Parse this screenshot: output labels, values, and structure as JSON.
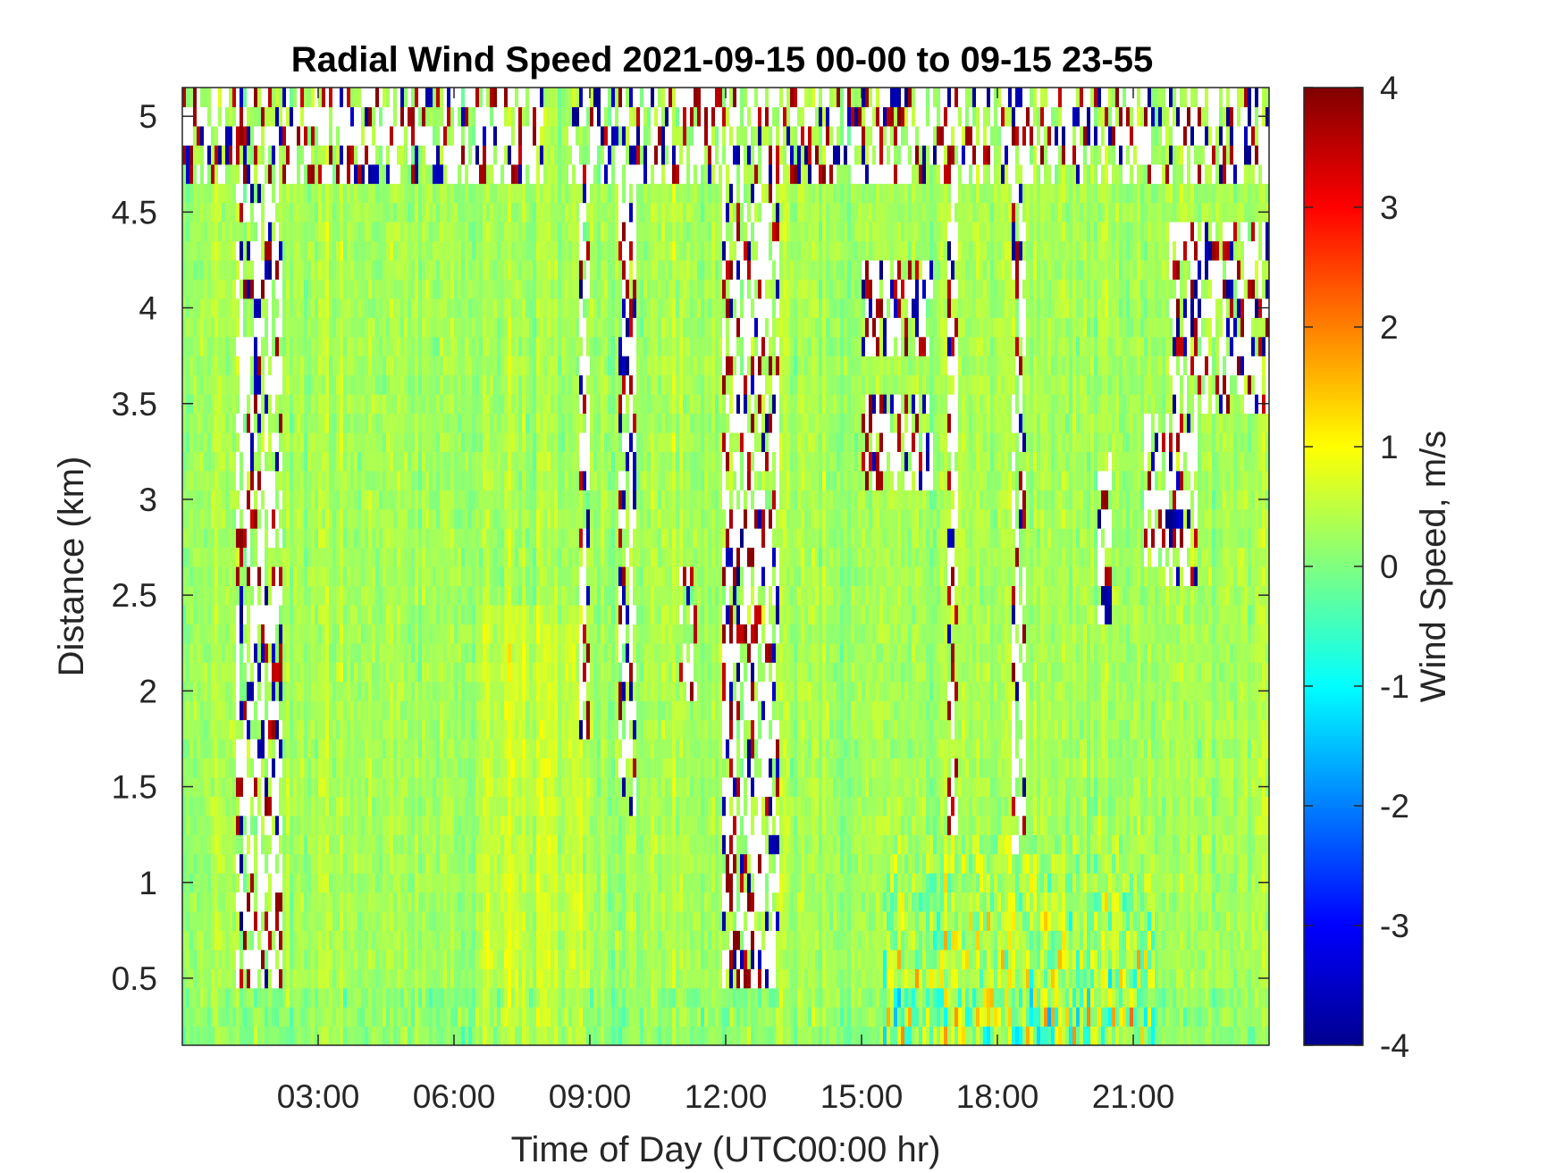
{
  "chart_data": {
    "type": "heatmap",
    "title": "Radial Wind Speed 2021-09-15 00-00 to 09-15 23-55",
    "xlabel": "Time of Day (UTC00:00 hr)",
    "ylabel": "Distance (km)",
    "colorbar_label": "Wind Speed, m/s",
    "colormap": "jet",
    "xlim_hours": [
      0,
      24
    ],
    "ylim_km": [
      0.15,
      5.15
    ],
    "clim": [
      -4,
      4
    ],
    "x_ticks": [
      3,
      6,
      9,
      12,
      15,
      18,
      21
    ],
    "x_tick_labels": [
      "03:00",
      "06:00",
      "09:00",
      "12:00",
      "15:00",
      "18:00",
      "21:00"
    ],
    "y_ticks": [
      0.5,
      1,
      1.5,
      2,
      2.5,
      3,
      3.5,
      4,
      4.5,
      5
    ],
    "y_tick_labels": [
      "0.5",
      "1",
      "1.5",
      "2",
      "2.5",
      "3",
      "3.5",
      "4",
      "4.5",
      "5"
    ],
    "colorbar_ticks": [
      -4,
      -3,
      -2,
      -1,
      0,
      1,
      2,
      3,
      4
    ],
    "colorbar_tick_labels": [
      "-4",
      "-3",
      "-2",
      "-1",
      "0",
      "1",
      "2",
      "3",
      "4"
    ],
    "grid": false,
    "typical_values": {
      "background_mean_m_s": 0.3,
      "daytime_low_level_fluctuations_m_s": [
        -2.5,
        3.0
      ]
    },
    "noisy_bands": [
      {
        "start_hr": 1.2,
        "end_hr": 2.2,
        "from_km": 0.5,
        "to_km": 5.15
      },
      {
        "start_hr": 8.8,
        "end_hr": 9.0,
        "from_km": 1.8,
        "to_km": 5.15
      },
      {
        "start_hr": 9.6,
        "end_hr": 10.0,
        "from_km": 1.4,
        "to_km": 5.15
      },
      {
        "start_hr": 11.0,
        "end_hr": 11.4,
        "from_km": 2.0,
        "to_km": 2.6
      },
      {
        "start_hr": 11.9,
        "end_hr": 13.2,
        "from_km": 0.45,
        "to_km": 5.15
      },
      {
        "start_hr": 15.0,
        "end_hr": 16.6,
        "from_km": 3.05,
        "to_km": 3.55
      },
      {
        "start_hr": 15.0,
        "end_hr": 16.6,
        "from_km": 3.8,
        "to_km": 4.3
      },
      {
        "start_hr": 16.9,
        "end_hr": 17.1,
        "from_km": 1.3,
        "to_km": 5.15
      },
      {
        "start_hr": 18.3,
        "end_hr": 18.6,
        "from_km": 1.2,
        "to_km": 5.15
      },
      {
        "start_hr": 20.2,
        "end_hr": 20.5,
        "from_km": 2.4,
        "to_km": 3.3
      },
      {
        "start_hr": 21.2,
        "end_hr": 22.4,
        "from_km": 2.6,
        "to_km": 3.4
      },
      {
        "start_hr": 21.8,
        "end_hr": 24.0,
        "from_km": 3.5,
        "to_km": 4.5
      },
      {
        "start_hr": 8.5,
        "end_hr": 24.0,
        "from_km": 4.65,
        "to_km": 5.15
      },
      {
        "start_hr": 0.0,
        "end_hr": 8.0,
        "from_km": 4.7,
        "to_km": 5.15
      }
    ]
  }
}
